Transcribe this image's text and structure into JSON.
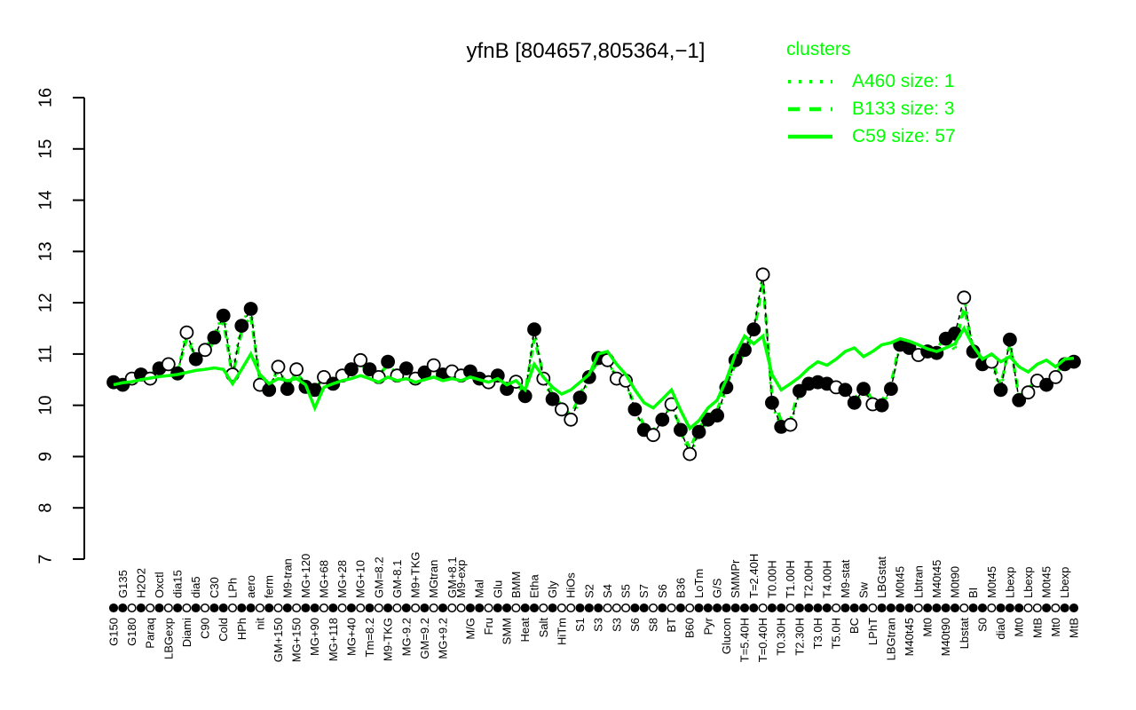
{
  "title": "yfnB [804657,805364,−1]",
  "legend": {
    "title": "clusters",
    "color": "#00FF00",
    "entries": [
      {
        "label": "A460 size: 1",
        "style": "dotted"
      },
      {
        "label": "B133 size: 3",
        "style": "dashed"
      },
      {
        "label": "C59 size: 57",
        "style": "solid"
      }
    ]
  },
  "chart_data": {
    "type": "line",
    "title": "yfnB [804657,805364,−1]",
    "xlabel": "",
    "ylabel": "",
    "ylim": [
      7,
      16
    ],
    "yticks": [
      7,
      8,
      9,
      10,
      11,
      12,
      13,
      14,
      15,
      16
    ],
    "grid": false,
    "legend_position": "top-right",
    "colors": {
      "gene": "#000000",
      "clusters": "#00FF00",
      "background": "#ffffff"
    },
    "x_categories": [
      [
        "G150",
        "b",
        "f"
      ],
      [
        "G135",
        "t",
        "f"
      ],
      [
        "G180",
        "b",
        "o"
      ],
      [
        "H2O2",
        "t",
        "f"
      ],
      [
        "Paraq",
        "b",
        "o"
      ],
      [
        "Oxctl",
        "t",
        "f"
      ],
      [
        "LBGexp",
        "b",
        "o"
      ],
      [
        "dia15",
        "t",
        "f"
      ],
      [
        "Diami",
        "b",
        "o"
      ],
      [
        "dia5",
        "t",
        "f"
      ],
      [
        "C90",
        "b",
        "o"
      ],
      [
        "C30",
        "t",
        "f"
      ],
      [
        "Cold",
        "b",
        "f"
      ],
      [
        "LPh",
        "t",
        "o"
      ],
      [
        "HPh",
        "b",
        "f"
      ],
      [
        "aero",
        "t",
        "f"
      ],
      [
        "nit",
        "b",
        "o"
      ],
      [
        "ferm",
        "t",
        "f"
      ],
      [
        "GM+150",
        "b",
        "o"
      ],
      [
        "M9-tran",
        "t",
        "f"
      ],
      [
        "MG+150",
        "b",
        "o"
      ],
      [
        "MG+120",
        "t",
        "f"
      ],
      [
        "MG+90",
        "b",
        "f"
      ],
      [
        "MG+68",
        "t",
        "o"
      ],
      [
        "MG+118",
        "b",
        "f"
      ],
      [
        "MG+28",
        "t",
        "o"
      ],
      [
        "MG+40",
        "b",
        "f"
      ],
      [
        "MG+10",
        "t",
        "o"
      ],
      [
        "Tm=8.2",
        "b",
        "f"
      ],
      [
        "GM=8.2",
        "t",
        "o"
      ],
      [
        "M9-TKG",
        "b",
        "f"
      ],
      [
        "GM-8.1",
        "t",
        "o"
      ],
      [
        "MG-9.2",
        "b",
        "f"
      ],
      [
        "M9+TKG",
        "t",
        "o"
      ],
      [
        "GM=9.2",
        "b",
        "f"
      ],
      [
        "MGtran",
        "t",
        "o"
      ],
      [
        "MG+9.2",
        "b",
        "f"
      ],
      [
        "GM+8.1",
        "t",
        "o"
      ],
      [
        "M9-exp",
        "t",
        "o"
      ],
      [
        "M/G",
        "b",
        "f"
      ],
      [
        "Mal",
        "t",
        "f"
      ],
      [
        "Fru",
        "b",
        "o"
      ],
      [
        "Glu",
        "t",
        "f"
      ],
      [
        "SMM",
        "b",
        "f"
      ],
      [
        "BMM",
        "t",
        "o"
      ],
      [
        "Heat",
        "b",
        "f"
      ],
      [
        "Etha",
        "t",
        "f"
      ],
      [
        "Salt",
        "b",
        "o"
      ],
      [
        "Gly",
        "t",
        "f"
      ],
      [
        "HiTm",
        "b",
        "o"
      ],
      [
        "HiOs",
        "t",
        "o"
      ],
      [
        "S1",
        "b",
        "f"
      ],
      [
        "S2",
        "t",
        "f"
      ],
      [
        "S3",
        "b",
        "f"
      ],
      [
        "S4",
        "t",
        "o"
      ],
      [
        "S3",
        "b",
        "o"
      ],
      [
        "S5",
        "t",
        "o"
      ],
      [
        "S6",
        "b",
        "f"
      ],
      [
        "S7",
        "t",
        "f"
      ],
      [
        "S8",
        "b",
        "o"
      ],
      [
        "S6",
        "t",
        "f"
      ],
      [
        "BT",
        "b",
        "o"
      ],
      [
        "B36",
        "t",
        "f"
      ],
      [
        "B60",
        "b",
        "o"
      ],
      [
        "LoTm",
        "t",
        "f"
      ],
      [
        "Pyr",
        "b",
        "f"
      ],
      [
        "G/S",
        "t",
        "f"
      ],
      [
        "Glucon",
        "b",
        "f"
      ],
      [
        "SMMPr",
        "t",
        "f"
      ],
      [
        "T=5.40H",
        "b",
        "f"
      ],
      [
        "T=2.40H",
        "t",
        "f"
      ],
      [
        "T=0.40H",
        "b",
        "o"
      ],
      [
        "T0.00H",
        "t",
        "f"
      ],
      [
        "T0.30H",
        "b",
        "f"
      ],
      [
        "T1.00H",
        "t",
        "o"
      ],
      [
        "T2.30H",
        "b",
        "f"
      ],
      [
        "T2.00H",
        "t",
        "f"
      ],
      [
        "T3.0H",
        "b",
        "f"
      ],
      [
        "T4.00H",
        "t",
        "f"
      ],
      [
        "T5.0H",
        "b",
        "o"
      ],
      [
        "M9-stat",
        "t",
        "f"
      ],
      [
        "BC",
        "b",
        "f"
      ],
      [
        "Sw",
        "t",
        "f"
      ],
      [
        "LPhT",
        "b",
        "o"
      ],
      [
        "LBGstat",
        "t",
        "f"
      ],
      [
        "LBGtran",
        "b",
        "f"
      ],
      [
        "M0t45",
        "t",
        "f"
      ],
      [
        "M40t45",
        "b",
        "f"
      ],
      [
        "Lbtran",
        "t",
        "o"
      ],
      [
        "Mt0",
        "b",
        "f"
      ],
      [
        "M40t45",
        "t",
        "f"
      ],
      [
        "M40t90",
        "b",
        "f"
      ],
      [
        "M0t90",
        "t",
        "f"
      ],
      [
        "Lbstat",
        "b",
        "o"
      ],
      [
        "BI",
        "t",
        "f"
      ],
      [
        "S0",
        "b",
        "f"
      ],
      [
        "M0t45",
        "t",
        "o"
      ],
      [
        "dia0",
        "b",
        "f"
      ],
      [
        "Lbexp",
        "t",
        "f"
      ],
      [
        "Mt0",
        "b",
        "f"
      ],
      [
        "Lbexp",
        "t",
        "o"
      ],
      [
        "MtB",
        "b",
        "o"
      ],
      [
        "M0t45",
        "t",
        "f"
      ],
      [
        "Mt0",
        "b",
        "o"
      ],
      [
        "Lbexp",
        "t",
        "f"
      ],
      [
        "MtB",
        "b",
        "f"
      ]
    ],
    "series": [
      {
        "name": "yfnB profile",
        "style": "black-dashed-with-points",
        "values": [
          10.45,
          10.4,
          10.52,
          10.6,
          10.52,
          10.72,
          10.8,
          10.62,
          11.42,
          10.9,
          11.08,
          11.32,
          11.75,
          10.6,
          11.55,
          11.88,
          10.4,
          10.3,
          10.75,
          10.32,
          10.7,
          10.36,
          10.3,
          10.55,
          10.42,
          10.58,
          10.7,
          10.88,
          10.7,
          10.55,
          10.85,
          10.58,
          10.72,
          10.52,
          10.64,
          10.78,
          10.6,
          10.66,
          10.58,
          10.66,
          10.52,
          10.45,
          10.58,
          10.32,
          10.46,
          10.18,
          11.48,
          10.52,
          10.12,
          9.92,
          9.72,
          10.15,
          10.55,
          10.92,
          10.88,
          10.52,
          10.48,
          9.92,
          9.52,
          9.42,
          9.72,
          10.02,
          9.52,
          9.05,
          9.48,
          9.72,
          9.8,
          10.35,
          10.88,
          11.08,
          11.48,
          12.55,
          10.05,
          9.58,
          9.62,
          10.28,
          10.42,
          10.45,
          10.42,
          10.35,
          10.3,
          10.05,
          10.32,
          10.02,
          10.0,
          10.32,
          11.18,
          11.12,
          10.98,
          11.05,
          11.02,
          11.3,
          11.4,
          12.1,
          11.05,
          10.8,
          10.85,
          10.3,
          11.28,
          10.1,
          10.25,
          10.48,
          10.4,
          10.55,
          10.8,
          10.85
        ]
      },
      {
        "name": "A460 size: 1",
        "style": "green-dotted",
        "values": [
          10.4,
          10.42,
          10.55,
          10.58,
          10.5,
          10.7,
          10.85,
          10.6,
          11.5,
          10.88,
          11.12,
          11.38,
          11.8,
          10.65,
          11.6,
          11.92,
          10.35,
          10.28,
          10.8,
          10.3,
          10.75,
          10.32,
          10.35,
          10.52,
          10.4,
          10.62,
          10.68,
          10.92,
          10.72,
          10.52,
          10.88,
          10.55,
          10.75,
          10.5,
          10.62,
          10.8,
          10.62,
          10.68,
          10.6,
          10.68,
          10.5,
          10.42,
          10.6,
          10.3,
          10.48,
          10.15,
          11.52,
          10.5,
          10.1,
          9.9,
          9.7,
          10.12,
          10.52,
          10.95,
          10.9,
          10.5,
          10.45,
          9.9,
          9.5,
          9.4,
          9.7,
          10.05,
          9.5,
          9.02,
          9.45,
          9.7,
          9.78,
          10.32,
          10.9,
          11.1,
          11.5,
          12.58,
          10.0,
          9.58,
          9.6,
          10.25,
          10.4,
          10.48,
          10.45,
          10.32,
          10.28,
          10.02,
          10.3,
          10.0,
          9.98,
          10.3,
          11.2,
          11.15,
          10.95,
          11.08,
          11.0,
          11.35,
          11.05,
          12.12,
          11.02,
          10.78,
          10.82,
          10.28,
          11.3,
          10.08,
          10.22,
          10.45,
          10.38,
          10.52,
          10.78,
          10.82
        ]
      },
      {
        "name": "B133 size: 3",
        "style": "green-dashed",
        "values": [
          10.5,
          10.45,
          10.48,
          10.65,
          10.58,
          10.78,
          10.75,
          10.68,
          11.3,
          10.95,
          11.0,
          11.25,
          11.65,
          10.55,
          11.45,
          11.75,
          10.5,
          10.38,
          10.68,
          10.4,
          10.62,
          10.42,
          10.25,
          10.6,
          10.48,
          10.52,
          10.75,
          10.8,
          10.65,
          10.6,
          10.78,
          10.62,
          10.66,
          10.58,
          10.7,
          10.72,
          10.55,
          10.6,
          10.52,
          10.6,
          10.58,
          10.5,
          10.52,
          10.38,
          10.4,
          10.25,
          11.3,
          10.6,
          10.2,
          10.0,
          9.8,
          10.2,
          10.6,
          10.85,
          10.8,
          10.58,
          10.42,
          10.0,
          9.6,
          9.5,
          9.8,
          9.95,
          9.6,
          9.15,
          9.55,
          9.8,
          9.9,
          10.4,
          10.8,
          11.0,
          11.4,
          12.4,
          10.2,
          9.7,
          9.7,
          10.35,
          10.48,
          10.5,
          10.4,
          10.42,
          10.35,
          10.12,
          10.38,
          10.1,
          10.08,
          10.4,
          11.25,
          11.05,
          11.05,
          11.1,
          11.08,
          11.38,
          11.15,
          11.9,
          11.1,
          10.85,
          10.9,
          10.38,
          11.2,
          10.18,
          10.3,
          10.55,
          10.45,
          10.6,
          10.85,
          10.9
        ]
      },
      {
        "name": "C59 size: 57",
        "style": "green-solid",
        "values": [
          10.4,
          10.44,
          10.46,
          10.5,
          10.53,
          10.56,
          10.58,
          10.6,
          10.64,
          10.68,
          10.7,
          10.73,
          10.7,
          10.42,
          10.7,
          11.0,
          10.6,
          10.42,
          10.52,
          10.48,
          10.52,
          10.4,
          9.95,
          10.35,
          10.42,
          10.48,
          10.52,
          10.58,
          10.52,
          10.45,
          10.55,
          10.48,
          10.52,
          10.45,
          10.5,
          10.55,
          10.48,
          10.52,
          10.48,
          10.55,
          10.5,
          10.45,
          10.52,
          10.4,
          10.48,
          10.3,
          10.8,
          10.55,
          10.35,
          10.22,
          10.3,
          10.45,
          10.6,
          11.0,
          11.05,
          10.8,
          10.6,
          10.3,
          10.05,
          9.95,
          10.12,
          10.3,
          9.9,
          9.55,
          9.7,
          9.95,
          10.1,
          10.5,
          11.0,
          11.35,
          11.2,
          11.35,
          10.6,
          10.3,
          10.42,
          10.55,
          10.72,
          10.85,
          10.78,
          10.9,
          11.05,
          11.12,
          10.95,
          11.05,
          11.18,
          11.22,
          11.3,
          11.25,
          11.18,
          11.1,
          11.05,
          11.12,
          11.2,
          11.5,
          11.15,
          10.9,
          11.0,
          10.85,
          10.95,
          10.75,
          10.65,
          10.8,
          10.88,
          10.75,
          10.9,
          10.92
        ]
      }
    ]
  }
}
